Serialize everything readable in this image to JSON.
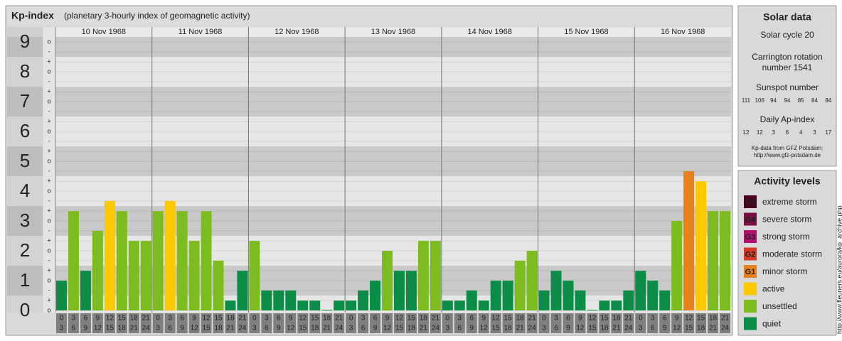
{
  "chart_data": {
    "type": "bar",
    "title": "Kp-index",
    "subtitle": "(planetary 3-hourly index of geomagnetic activity)",
    "ylim": [
      0,
      9.17
    ],
    "yticks": [
      0,
      1,
      2,
      3,
      4,
      5,
      6,
      7,
      8,
      9
    ],
    "yticks_minor": [
      {
        "value": 0,
        "label": "o"
      },
      {
        "value": 0.33,
        "label": "+"
      },
      {
        "value": 0.67,
        "label": "-"
      },
      {
        "value": 1,
        "label": "o"
      },
      {
        "value": 1.33,
        "label": "+"
      },
      {
        "value": 1.67,
        "label": "-"
      },
      {
        "value": 2,
        "label": "o"
      },
      {
        "value": 2.33,
        "label": "+"
      },
      {
        "value": 2.67,
        "label": "-"
      },
      {
        "value": 3,
        "label": "o"
      },
      {
        "value": 3.33,
        "label": "+"
      },
      {
        "value": 3.67,
        "label": "-"
      },
      {
        "value": 4,
        "label": "o"
      },
      {
        "value": 4.33,
        "label": "+"
      },
      {
        "value": 4.67,
        "label": "-"
      },
      {
        "value": 5,
        "label": "o"
      },
      {
        "value": 5.33,
        "label": "+"
      },
      {
        "value": 5.67,
        "label": "-"
      },
      {
        "value": 6,
        "label": "o"
      },
      {
        "value": 6.33,
        "label": "+"
      },
      {
        "value": 6.67,
        "label": "-"
      },
      {
        "value": 7,
        "label": "o"
      },
      {
        "value": 7.33,
        "label": "+"
      },
      {
        "value": 7.67,
        "label": "-"
      },
      {
        "value": 8,
        "label": "o"
      },
      {
        "value": 8.33,
        "label": "+"
      },
      {
        "value": 8.67,
        "label": "-"
      },
      {
        "value": 9,
        "label": "o"
      }
    ],
    "grid": true,
    "hours": [
      0,
      3,
      6,
      9,
      12,
      15,
      18,
      21,
      24
    ],
    "days": [
      {
        "date": "10 Nov 1968",
        "values": [
          1,
          3.33,
          1.33,
          2.67,
          3.67,
          3.33,
          2.33,
          2.33
        ],
        "colors": [
          "#0b8c47",
          "#7cbc1e",
          "#0b8c47",
          "#7cbc1e",
          "#fcc800",
          "#7cbc1e",
          "#7cbc1e",
          "#7cbc1e"
        ]
      },
      {
        "date": "11 Nov 1968",
        "values": [
          3.33,
          3.67,
          3.33,
          2.33,
          3.33,
          1.67,
          0.33,
          1.33
        ],
        "colors": [
          "#7cbc1e",
          "#fcc800",
          "#7cbc1e",
          "#7cbc1e",
          "#7cbc1e",
          "#7cbc1e",
          "#0b8c47",
          "#0b8c47"
        ]
      },
      {
        "date": "12 Nov 1968",
        "values": [
          2.33,
          0.67,
          0.67,
          0.67,
          0.33,
          0.33,
          0,
          0.33
        ],
        "colors": [
          "#7cbc1e",
          "#0b8c47",
          "#0b8c47",
          "#0b8c47",
          "#0b8c47",
          "#0b8c47",
          "#0b8c47",
          "#0b8c47"
        ]
      },
      {
        "date": "13 Nov 1968",
        "values": [
          0.33,
          0.67,
          1,
          2,
          1.33,
          1.33,
          2.33,
          2.33
        ],
        "colors": [
          "#0b8c47",
          "#0b8c47",
          "#0b8c47",
          "#7cbc1e",
          "#0b8c47",
          "#0b8c47",
          "#7cbc1e",
          "#7cbc1e"
        ]
      },
      {
        "date": "14 Nov 1968",
        "values": [
          0.33,
          0.33,
          0.67,
          0.33,
          1,
          1,
          1.67,
          2
        ],
        "colors": [
          "#0b8c47",
          "#0b8c47",
          "#0b8c47",
          "#0b8c47",
          "#0b8c47",
          "#0b8c47",
          "#7cbc1e",
          "#7cbc1e"
        ]
      },
      {
        "date": "15 Nov 1968",
        "values": [
          0.67,
          1.33,
          1,
          0.67,
          0,
          0.33,
          0.33,
          0.67
        ],
        "colors": [
          "#0b8c47",
          "#0b8c47",
          "#0b8c47",
          "#0b8c47",
          "#0b8c47",
          "#0b8c47",
          "#0b8c47",
          "#0b8c47"
        ]
      },
      {
        "date": "16 Nov 1968",
        "values": [
          1.33,
          1,
          0.67,
          3,
          4.67,
          4.33,
          3.33,
          3.33
        ],
        "colors": [
          "#0b8c47",
          "#0b8c47",
          "#0b8c47",
          "#7cbc1e",
          "#e8801c",
          "#fcc800",
          "#7cbc1e",
          "#7cbc1e"
        ]
      }
    ]
  },
  "solar_data": {
    "title": "Solar data",
    "cycle": "Solar cycle 20",
    "carrington": [
      "Carrington rotation",
      "number 1541"
    ],
    "sunspot_title": "Sunspot number",
    "sunspot": [
      111,
      106,
      94,
      94,
      85,
      84,
      84
    ],
    "ap_title": "Daily Ap-index",
    "ap": [
      12,
      12,
      3,
      6,
      4,
      3,
      17
    ],
    "credit": [
      "Kp-data from GFZ Potsdam:",
      "http://www.gfz-potsdam.de"
    ]
  },
  "activity_levels": {
    "title": "Activity levels",
    "levels": [
      {
        "code": "G5",
        "name": "extreme storm",
        "color": "#4a0020"
      },
      {
        "code": "G4",
        "name": "severe storm",
        "color": "#7a1040"
      },
      {
        "code": "G3",
        "name": "strong storm",
        "color": "#b0106c"
      },
      {
        "code": "G2",
        "name": "moderate storm",
        "color": "#d63a22"
      },
      {
        "code": "G1",
        "name": "minor storm",
        "color": "#e8801c"
      },
      {
        "name": "active",
        "color": "#fcc800"
      },
      {
        "name": "unsettled",
        "color": "#7cbc1e"
      },
      {
        "name": "quiet",
        "color": "#0b8c47"
      }
    ]
  },
  "watermark": "http://www.fleuners.eu/aurora/kp_archive.php"
}
